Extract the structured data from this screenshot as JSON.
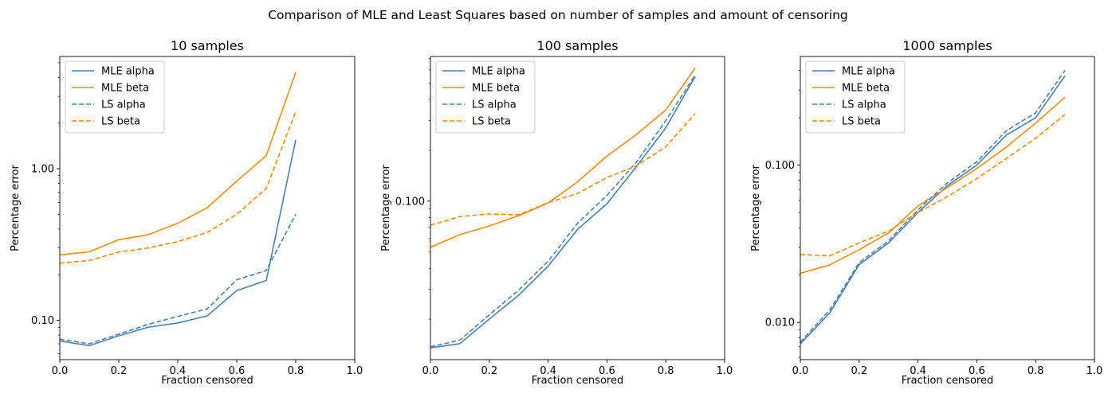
{
  "figure": {
    "suptitle": "Comparison of MLE and Least Squares based on number of samples and amount of censoring"
  },
  "colors": {
    "alpha": "#4682b4",
    "beta": "#ff8c00"
  },
  "chart_data": [
    {
      "type": "line",
      "title": "10 samples",
      "xlabel": "Fraction censored",
      "ylabel": "Percentage error",
      "yscale": "log",
      "xlim": [
        0,
        1
      ],
      "ylim": [
        0.055,
        5.5
      ],
      "xticks": [
        0,
        0.2,
        0.4,
        0.6,
        0.8,
        1.0
      ],
      "xtick_labels": [
        "0.0",
        "0.2",
        "0.4",
        "0.6",
        "0.8",
        "1.0"
      ],
      "yticks": [
        0.1,
        1.0
      ],
      "ytick_labels": [
        "0.10",
        "1.00"
      ],
      "legend": "top-left",
      "grid": false,
      "x": [
        0.0,
        0.1,
        0.2,
        0.3,
        0.4,
        0.5,
        0.6,
        0.7,
        0.8
      ],
      "series": [
        {
          "name": "MLE alpha",
          "values": [
            0.073,
            0.068,
            0.079,
            0.09,
            0.096,
            0.107,
            0.157,
            0.183,
            1.55
          ]
        },
        {
          "name": "MLE beta",
          "values": [
            0.27,
            0.283,
            0.34,
            0.367,
            0.437,
            0.553,
            0.828,
            1.22,
            4.32
          ]
        },
        {
          "name": "LS alpha",
          "values": [
            0.075,
            0.07,
            0.081,
            0.094,
            0.106,
            0.119,
            0.185,
            0.213,
            0.5
          ]
        },
        {
          "name": "LS beta",
          "values": [
            0.238,
            0.248,
            0.282,
            0.3,
            0.33,
            0.38,
            0.5,
            0.74,
            2.38
          ]
        }
      ]
    },
    {
      "type": "line",
      "title": "100 samples",
      "xlabel": "Fraction censored",
      "ylabel": "Percentage error",
      "yscale": "log",
      "xlim": [
        0,
        1
      ],
      "ylim": [
        0.0115,
        0.72
      ],
      "xticks": [
        0,
        0.2,
        0.4,
        0.6,
        0.8,
        1.0
      ],
      "xtick_labels": [
        "0.0",
        "0.2",
        "0.4",
        "0.6",
        "0.8",
        "1.0"
      ],
      "yticks": [
        0.1
      ],
      "ytick_labels": [
        "0.100"
      ],
      "legend": "top-left",
      "grid": false,
      "x": [
        0.0,
        0.1,
        0.2,
        0.3,
        0.4,
        0.5,
        0.6,
        0.7,
        0.8,
        0.9
      ],
      "series": [
        {
          "name": "MLE alpha",
          "values": [
            0.0135,
            0.0143,
            0.02,
            0.0277,
            0.0412,
            0.068,
            0.0965,
            0.16,
            0.272,
            0.549
          ]
        },
        {
          "name": "MLE beta",
          "values": [
            0.0533,
            0.0633,
            0.0713,
            0.082,
            0.0975,
            0.13,
            0.185,
            0.248,
            0.347,
            0.615
          ]
        },
        {
          "name": "LS alpha",
          "values": [
            0.0137,
            0.015,
            0.0212,
            0.0297,
            0.044,
            0.074,
            0.108,
            0.17,
            0.3,
            0.56
          ]
        },
        {
          "name": "LS beta",
          "values": [
            0.072,
            0.081,
            0.084,
            0.083,
            0.098,
            0.111,
            0.138,
            0.162,
            0.21,
            0.33
          ]
        }
      ]
    },
    {
      "type": "line",
      "title": "1000 samples",
      "xlabel": "Fraction censored",
      "ylabel": "Percentage error",
      "yscale": "log",
      "xlim": [
        0,
        1
      ],
      "ylim": [
        0.0058,
        0.49
      ],
      "xticks": [
        0,
        0.2,
        0.4,
        0.6,
        0.8,
        1.0
      ],
      "xtick_labels": [
        "0.0",
        "0.2",
        "0.4",
        "0.6",
        "0.8",
        "1.0"
      ],
      "yticks": [
        0.01,
        0.1
      ],
      "ytick_labels": [
        "0.010",
        "0.100"
      ],
      "legend": "top-left",
      "grid": false,
      "x": [
        0.0,
        0.1,
        0.2,
        0.3,
        0.4,
        0.5,
        0.6,
        0.7,
        0.8,
        0.9
      ],
      "series": [
        {
          "name": "MLE alpha",
          "values": [
            0.0073,
            0.0115,
            0.0233,
            0.032,
            0.05,
            0.074,
            0.1,
            0.155,
            0.2,
            0.37
          ]
        },
        {
          "name": "MLE beta",
          "values": [
            0.0205,
            0.0232,
            0.029,
            0.037,
            0.055,
            0.072,
            0.095,
            0.13,
            0.185,
            0.27
          ]
        },
        {
          "name": "LS alpha",
          "values": [
            0.0075,
            0.012,
            0.024,
            0.033,
            0.052,
            0.077,
            0.105,
            0.165,
            0.215,
            0.4
          ]
        },
        {
          "name": "LS beta",
          "values": [
            0.027,
            0.0265,
            0.032,
            0.038,
            0.05,
            0.063,
            0.082,
            0.11,
            0.148,
            0.21
          ]
        }
      ]
    }
  ]
}
